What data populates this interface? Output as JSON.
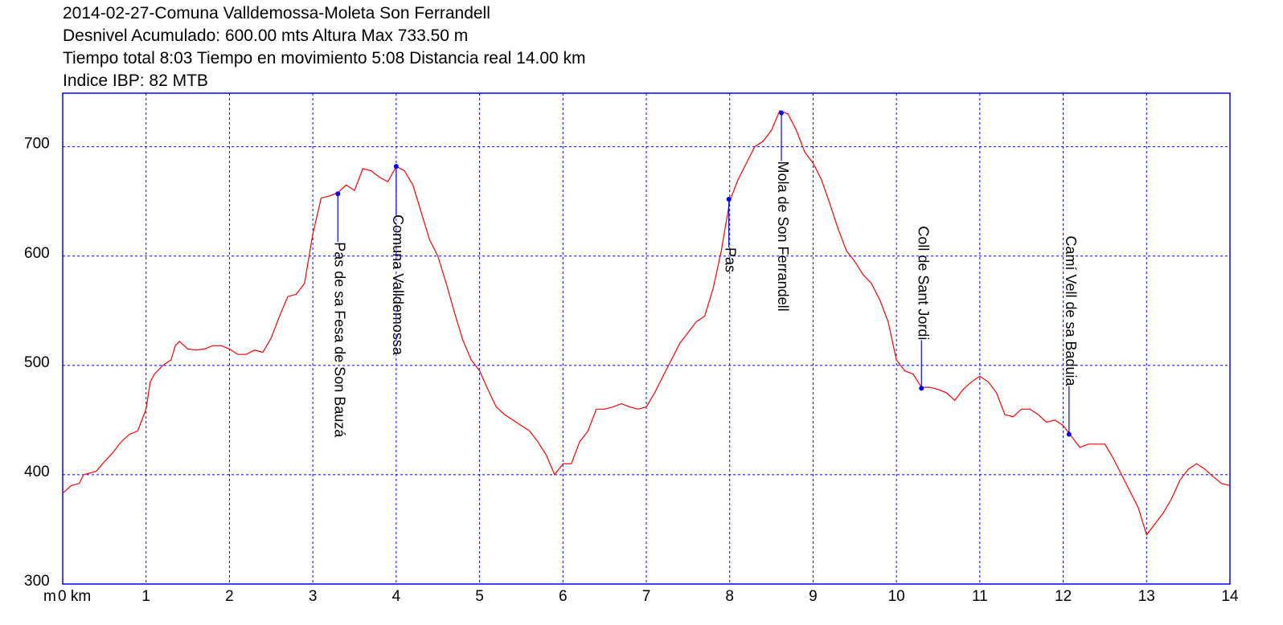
{
  "chart_data": {
    "type": "line",
    "title": [
      "2014-02-27-Comuna Valldemossa-Moleta Son Ferrandell",
      "Desnivel Acumulado: 600.00 mts  Altura Max 733.50 m",
      "Tiempo total 8:03 Tiempo en movimiento 5:08 Distancia real 14.00 km",
      "Indice IBP: 82 MTB"
    ],
    "y_label": "m",
    "color": "#ff0000",
    "grid": true,
    "grid_color": "#0000ff",
    "xlim": [
      0,
      14
    ],
    "ylim": [
      300,
      749
    ],
    "xticks": [
      {
        "value": 0,
        "label": "0 km"
      },
      1,
      2,
      3,
      4,
      5,
      6,
      7,
      8,
      9,
      10,
      11,
      12,
      13,
      14
    ],
    "yticks": [
      300,
      400,
      500,
      600,
      700
    ],
    "x": [
      0,
      0.1,
      0.2,
      0.25,
      0.4,
      0.5,
      0.6,
      0.7,
      0.8,
      0.9,
      1.0,
      1.05,
      1.1,
      1.2,
      1.3,
      1.35,
      1.4,
      1.5,
      1.6,
      1.7,
      1.8,
      1.9,
      2.0,
      2.1,
      2.2,
      2.3,
      2.4,
      2.5,
      2.6,
      2.7,
      2.8,
      2.9,
      3.0,
      3.1,
      3.2,
      3.3,
      3.4,
      3.5,
      3.6,
      3.7,
      3.8,
      3.9,
      4.0,
      4.1,
      4.2,
      4.3,
      4.4,
      4.5,
      4.6,
      4.7,
      4.8,
      4.9,
      5.0,
      5.1,
      5.2,
      5.3,
      5.4,
      5.5,
      5.6,
      5.7,
      5.8,
      5.9,
      6.0,
      6.1,
      6.2,
      6.3,
      6.4,
      6.5,
      6.6,
      6.7,
      6.8,
      6.9,
      7.0,
      7.1,
      7.2,
      7.3,
      7.4,
      7.5,
      7.6,
      7.7,
      7.8,
      7.9,
      8.0,
      8.1,
      8.2,
      8.3,
      8.4,
      8.5,
      8.6,
      8.7,
      8.8,
      8.9,
      9.0,
      9.1,
      9.2,
      9.3,
      9.4,
      9.5,
      9.6,
      9.7,
      9.8,
      9.9,
      10.0,
      10.1,
      10.2,
      10.3,
      10.4,
      10.5,
      10.6,
      10.7,
      10.8,
      10.9,
      11.0,
      11.1,
      11.2,
      11.3,
      11.4,
      11.5,
      11.6,
      11.7,
      11.8,
      11.9,
      12.0,
      12.1,
      12.2,
      12.3,
      12.4,
      12.5,
      12.6,
      12.7,
      12.8,
      12.9,
      13.0,
      13.1,
      13.2,
      13.3,
      13.4,
      13.5,
      13.6,
      13.7,
      13.8,
      13.9,
      14.0
    ],
    "values": [
      383,
      390,
      392,
      400,
      403,
      412,
      420,
      430,
      437,
      440,
      460,
      485,
      492,
      500,
      505,
      518,
      522,
      515,
      514,
      515,
      518,
      518,
      515,
      510,
      510,
      514,
      512,
      525,
      545,
      563,
      565,
      575,
      620,
      653,
      655,
      658,
      665,
      660,
      680,
      678,
      672,
      668,
      682,
      678,
      665,
      640,
      615,
      600,
      575,
      548,
      523,
      505,
      495,
      478,
      462,
      455,
      450,
      445,
      440,
      430,
      418,
      400,
      410,
      410,
      430,
      440,
      460,
      460,
      462,
      465,
      462,
      460,
      462,
      475,
      490,
      505,
      520,
      530,
      540,
      545,
      570,
      605,
      650,
      670,
      685,
      700,
      705,
      715,
      733,
      730,
      715,
      695,
      685,
      670,
      648,
      625,
      605,
      595,
      583,
      575,
      560,
      540,
      505,
      495,
      492,
      480,
      480,
      478,
      475,
      468,
      478,
      485,
      490,
      485,
      475,
      455,
      453,
      460,
      460,
      455,
      448,
      450,
      445,
      435,
      425,
      428,
      428,
      428,
      415,
      400,
      385,
      370,
      345,
      355,
      365,
      378,
      395,
      405,
      410,
      405,
      398,
      392,
      390
    ],
    "waypoint_color": "#0000ff",
    "waypoints": [
      {
        "label": "Pas de sa Fesa de Son Bauzá",
        "x": 3.3,
        "y": 657
      },
      {
        "label": "Comuna Valldemossa",
        "x": 4.0,
        "y": 682
      },
      {
        "label": "Pas",
        "x": 7.99,
        "y": 652
      },
      {
        "label": "Mola de Son Ferrandell",
        "x": 8.62,
        "y": 731
      },
      {
        "label": "Coll de Sant Jordi",
        "x": 10.3,
        "y": 479
      },
      {
        "label": "Camí Vell de sa Baduia",
        "x": 12.07,
        "y": 437
      }
    ]
  }
}
